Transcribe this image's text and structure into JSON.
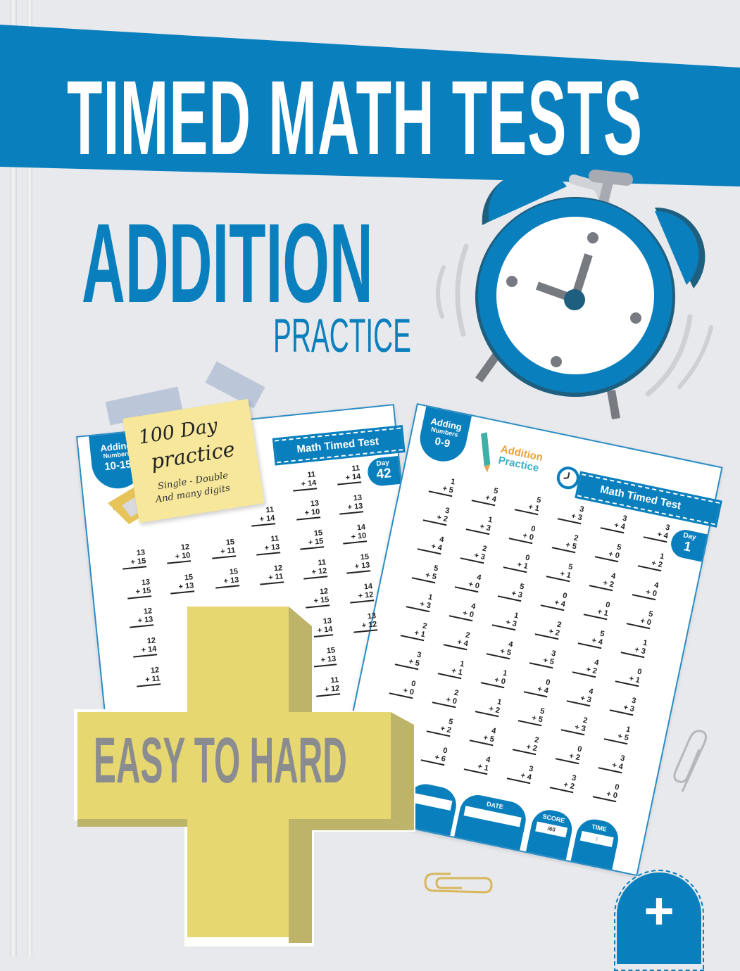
{
  "cover": {
    "title": "TIMED MATH TESTS",
    "subject": "ADDITION",
    "subtitle": "PRACTICE",
    "badge_text": "EASY TO HARD",
    "corner_symbol": "+"
  },
  "sticky_note": {
    "line1": "100 Day",
    "line2": "practice",
    "line3": "Single - Double",
    "line4": "And many digits"
  },
  "sheet_left": {
    "badge": {
      "line1": "Adding",
      "line2": "Numbers",
      "line3": "10-15"
    },
    "header": "Math Timed Test",
    "day_label": "Day",
    "day_number": "42",
    "problems": [
      [
        "15",
        "?"
      ],
      [
        "13",
        "15"
      ],
      [
        "13",
        "15"
      ],
      [
        "12",
        "13"
      ],
      [
        "12",
        "14"
      ],
      [
        "12",
        "11"
      ],
      [
        "12",
        "10"
      ],
      [
        "15",
        "13"
      ],
      [
        "15",
        "11"
      ],
      [
        "15",
        "13"
      ],
      [
        "11",
        "14"
      ],
      [
        "11",
        "13"
      ],
      [
        "12",
        "11"
      ],
      [
        "11",
        "14"
      ],
      [
        "13",
        "10"
      ],
      [
        "15",
        "15"
      ],
      [
        "11",
        "12"
      ],
      [
        "12",
        "15"
      ],
      [
        "13",
        "14"
      ],
      [
        "15",
        "13"
      ],
      [
        "11",
        "12"
      ],
      [
        "11",
        "14"
      ],
      [
        "13",
        "13"
      ],
      [
        "14",
        "10"
      ],
      [
        "15",
        "13"
      ],
      [
        "14",
        "12"
      ],
      [
        "13",
        "12"
      ]
    ]
  },
  "sheet_right": {
    "badge": {
      "line1": "Adding",
      "line2": "Numbers",
      "line3": "0-9"
    },
    "logo_line1": "Addition",
    "logo_line2": "Practice",
    "header": "Math Timed Test",
    "day_label": "Day",
    "day_number": "1",
    "problems": [
      [
        [
          "1",
          "5"
        ],
        [
          "5",
          "4"
        ],
        [
          "5",
          "1"
        ],
        [
          "3",
          "3"
        ],
        [
          "3",
          "4"
        ],
        [
          "3",
          "4"
        ]
      ],
      [
        [
          "3",
          "2"
        ],
        [
          "1",
          "3"
        ],
        [
          "0",
          "0"
        ],
        [
          "2",
          "5"
        ],
        [
          "5",
          "0"
        ],
        [
          "1",
          "2"
        ]
      ],
      [
        [
          "4",
          "4"
        ],
        [
          "2",
          "3"
        ],
        [
          "0",
          "1"
        ],
        [
          "5",
          "1"
        ],
        [
          "4",
          "2"
        ],
        [
          "4",
          "0"
        ]
      ],
      [
        [
          "5",
          "5"
        ],
        [
          "4",
          "0"
        ],
        [
          "5",
          "3"
        ],
        [
          "0",
          "4"
        ],
        [
          "0",
          "1"
        ],
        [
          "5",
          "0"
        ]
      ],
      [
        [
          "1",
          "3"
        ],
        [
          "4",
          "0"
        ],
        [
          "1",
          "3"
        ],
        [
          "2",
          "2"
        ],
        [
          "5",
          "4"
        ],
        [
          "1",
          "3"
        ]
      ],
      [
        [
          "2",
          "1"
        ],
        [
          "2",
          "4"
        ],
        [
          "4",
          "5"
        ],
        [
          "3",
          "5"
        ],
        [
          "4",
          "2"
        ],
        [
          "0",
          "1"
        ]
      ],
      [
        [
          "3",
          "5"
        ],
        [
          "1",
          "1"
        ],
        [
          "1",
          "0"
        ],
        [
          "0",
          "4"
        ],
        [
          "4",
          "3"
        ],
        [
          "3",
          "3"
        ]
      ],
      [
        [
          "0",
          "0"
        ],
        [
          "2",
          "0"
        ],
        [
          "1",
          "2"
        ],
        [
          "5",
          "5"
        ],
        [
          "2",
          "3"
        ],
        [
          "1",
          "5"
        ]
      ],
      [
        [
          "5",
          "2"
        ],
        [
          "4",
          "5"
        ],
        [
          "2",
          "2"
        ],
        [
          "0",
          "2"
        ],
        [
          "3",
          "4"
        ]
      ],
      [
        [
          "0",
          "6"
        ],
        [
          "4",
          "1"
        ],
        [
          "3",
          "4"
        ],
        [
          "3",
          "2"
        ],
        [
          "0",
          "0"
        ]
      ]
    ],
    "footer": {
      "date_label": "DATE",
      "score_label": "SCORE",
      "score_value": "/60",
      "time_label": "TIME",
      "time_value": ":"
    }
  },
  "colors": {
    "brand_blue": "#0a7fbd",
    "dark_blue": "#1e5f80",
    "plus_yellow": "#e6d770",
    "plus_shadow": "#bdb46a",
    "background": "#e8e9ec",
    "text_gray": "#8b8c8f"
  },
  "icons": [
    "alarm-clock-icon",
    "pencil-icon",
    "paperclip-icon",
    "pencil-sharpener-icon",
    "plus-icon"
  ]
}
